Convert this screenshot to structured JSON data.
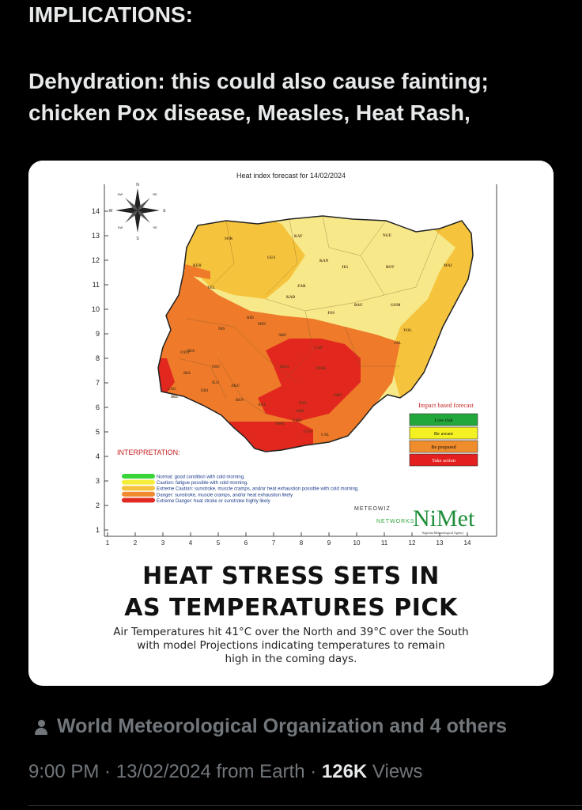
{
  "post": {
    "heading": "IMPLICATIONS:",
    "body_line1": "Dehydration: this could also cause fainting;",
    "body_line2": "chicken Pox disease, Measles, Heat Rash,"
  },
  "image": {
    "map_title": "Heat index forecast for 14/02/2024",
    "y_ticks": [
      "14",
      "13",
      "12",
      "11",
      "10",
      "9",
      "8",
      "7",
      "6",
      "5",
      "4",
      "3",
      "2",
      "1"
    ],
    "x_ticks": [
      "1",
      "2",
      "3",
      "4",
      "5",
      "6",
      "7",
      "8",
      "9",
      "10",
      "11",
      "12",
      "13",
      "14"
    ],
    "compass_labels": [
      "N",
      "S",
      "W",
      "E",
      "NW",
      "NE",
      "SW",
      "SE"
    ],
    "state_labels": [
      "SOK",
      "KAT",
      "NGU",
      "KEB",
      "GUS",
      "KAN",
      "JIG",
      "BOT",
      "MAI",
      "ZAR",
      "KAD",
      "YEL",
      "BAU",
      "GOM",
      "BID",
      "JOS",
      "MIN",
      "ABU",
      "NIS",
      "YOL",
      "JAL",
      "OYO",
      "SHA",
      "OSU",
      "ILO",
      "LAF",
      "KOG",
      "MAK",
      "IBA",
      "AKU",
      "EKI",
      "BEN",
      "ASA",
      "OBU",
      "ENU",
      "ABK",
      "UMU",
      "OWE",
      "UYO",
      "CAL",
      "LAG",
      "IKE"
    ],
    "legend_title": "Impact based forecast",
    "legend": [
      {
        "label": "Low risk",
        "color": "#22a83a"
      },
      {
        "label": "Be aware",
        "color": "#f4f122"
      },
      {
        "label": "Be prepared",
        "color": "#ef8c2c"
      },
      {
        "label": "Take action",
        "color": "#e41f1f"
      }
    ],
    "interpretation_title": "INTERPRETATION:",
    "interpretation": [
      {
        "text": "Normal: good condition with cold morning.",
        "color": "#38d43a"
      },
      {
        "text": "Caution: fatigue possible  with cold morning.",
        "color": "#f4ee3a"
      },
      {
        "text": "Extreme Caution: sunstroke, muscle cramps, and/or heat exhaustion possible  with cold morning.",
        "color": "#f6c23e"
      },
      {
        "text": "Danger: sunstroke, muscle cramps, and/or heat exhaustion likely",
        "color": "#ef8a2e"
      },
      {
        "text": "Extreme Danger: heat stroke or sunstroke highly likely",
        "color": "#e12a22"
      }
    ],
    "logo_meteowiz_1": "METEOWIZ",
    "logo_meteowiz_2": "NETWORKS",
    "logo_nimet": "NiMet",
    "logo_nimet_sub": "Nigerian Meteorological Agency",
    "headline_line1": "HEAT STRESS SETS IN",
    "headline_line2": "AS TEMPERATURES PICK",
    "sub_line1": "Air Temperatures hit 41°C over the North and 39°C over the South",
    "sub_line2": "with model Projections indicating temperatures to remain",
    "sub_line3": "high in the coming days."
  },
  "attribution": "World Meteorological Organization and 4 others",
  "meta": {
    "time": "9:00 PM",
    "sep1": " · ",
    "date": "13/02/2024",
    "from": " from Earth",
    "sep2": " · ",
    "views_count": "126K",
    "views_label": " Views"
  },
  "colors": {
    "low": "#22a83a",
    "aware": "#f7ec8c",
    "caution": "#f8d34d",
    "extreme_caution": "#f2a93b",
    "danger": "#ec7a2b",
    "extreme": "#e2281e"
  }
}
